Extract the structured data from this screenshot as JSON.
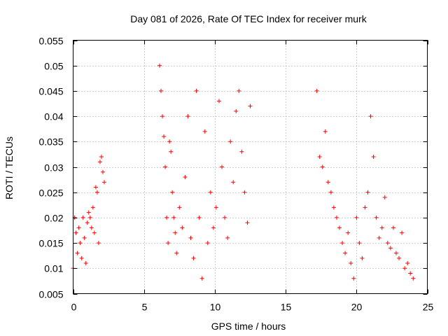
{
  "chart_data": {
    "type": "scatter",
    "title": "Day 081 of 2026, Rate Of TEC Index for receiver murk",
    "xlabel": "GPS time / hours",
    "ylabel": "ROTI / TECUs",
    "xlim": [
      0,
      25
    ],
    "ylim": [
      0.005,
      0.055
    ],
    "xticks": [
      0,
      5,
      10,
      15,
      20,
      25
    ],
    "xtick_labels": [
      "0",
      "5",
      "10",
      "15",
      "20",
      "25"
    ],
    "yticks": [
      0.005,
      0.01,
      0.015,
      0.02,
      0.025,
      0.03,
      0.035,
      0.04,
      0.045,
      0.05,
      0.055
    ],
    "ytick_labels": [
      "0.005",
      "0.01",
      "0.015",
      "0.02",
      "0.025",
      "0.03",
      "0.035",
      "0.04",
      "0.045",
      "0.05",
      "0.055"
    ],
    "grid": true,
    "marker": "+",
    "color": "#ff0000",
    "series": [
      {
        "name": "ROTI",
        "x": [
          0.0,
          0.1,
          0.2,
          0.3,
          0.4,
          0.5,
          0.6,
          0.7,
          0.8,
          0.9,
          1.0,
          1.1,
          1.2,
          1.3,
          1.4,
          1.5,
          1.6,
          1.7,
          1.8,
          1.9,
          2.0,
          2.1,
          2.2,
          6.1,
          6.2,
          6.3,
          6.4,
          6.5,
          6.6,
          6.7,
          6.8,
          6.9,
          7.0,
          7.1,
          7.2,
          7.3,
          7.5,
          7.7,
          7.9,
          8.1,
          8.3,
          8.5,
          8.7,
          8.9,
          9.1,
          9.3,
          9.5,
          9.7,
          9.9,
          10.1,
          10.3,
          10.5,
          10.7,
          10.9,
          11.1,
          11.3,
          11.5,
          11.7,
          11.9,
          12.1,
          12.3,
          12.5,
          17.2,
          17.4,
          17.6,
          17.8,
          18.0,
          18.2,
          18.4,
          18.6,
          18.8,
          19.0,
          19.2,
          19.4,
          19.6,
          19.8,
          20.0,
          20.2,
          20.4,
          20.6,
          20.8,
          21.0,
          21.2,
          21.4,
          21.6,
          21.8,
          22.0,
          22.2,
          22.4,
          22.6,
          22.8,
          23.0,
          23.2,
          23.4,
          23.6,
          23.8,
          24.0
        ],
        "y": [
          0.01,
          0.02,
          0.017,
          0.013,
          0.018,
          0.015,
          0.012,
          0.02,
          0.016,
          0.011,
          0.019,
          0.021,
          0.02,
          0.018,
          0.022,
          0.017,
          0.026,
          0.025,
          0.015,
          0.031,
          0.032,
          0.029,
          0.027,
          0.05,
          0.045,
          0.04,
          0.036,
          0.03,
          0.02,
          0.015,
          0.035,
          0.033,
          0.025,
          0.02,
          0.017,
          0.013,
          0.022,
          0.018,
          0.028,
          0.04,
          0.016,
          0.012,
          0.045,
          0.02,
          0.008,
          0.037,
          0.015,
          0.025,
          0.018,
          0.022,
          0.043,
          0.03,
          0.02,
          0.016,
          0.035,
          0.027,
          0.041,
          0.045,
          0.033,
          0.025,
          0.019,
          0.042,
          0.045,
          0.032,
          0.03,
          0.037,
          0.027,
          0.025,
          0.022,
          0.02,
          0.018,
          0.015,
          0.013,
          0.017,
          0.011,
          0.008,
          0.02,
          0.015,
          0.012,
          0.022,
          0.025,
          0.04,
          0.032,
          0.02,
          0.016,
          0.018,
          0.024,
          0.015,
          0.014,
          0.018,
          0.013,
          0.012,
          0.017,
          0.01,
          0.011,
          0.009,
          0.008
        ]
      }
    ]
  }
}
